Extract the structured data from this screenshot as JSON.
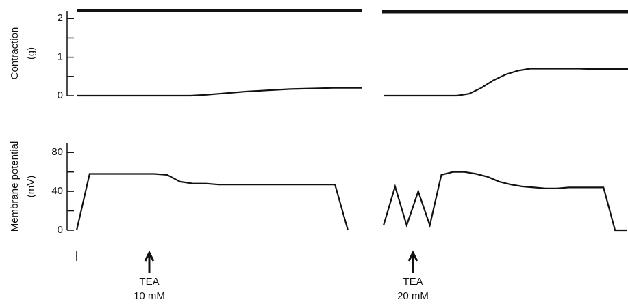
{
  "chart_data": [
    {
      "type": "line",
      "ylabel": [
        "Contraction",
        "(g)"
      ],
      "ylim": [
        0,
        2.2
      ],
      "yticks": [
        0,
        1,
        2
      ],
      "minor_yticks": [
        0.5,
        1.5
      ],
      "series": [
        {
          "color": "#111111",
          "values": [
            0,
            0,
            0,
            0,
            0,
            0,
            0,
            0,
            0,
            0.02,
            0.05,
            0.08,
            0.11,
            0.13,
            0.15,
            0.17,
            0.18,
            0.19,
            0.2,
            0.2,
            0.2
          ]
        },
        {
          "color": "#111111",
          "values": [
            0,
            0,
            0,
            0,
            0,
            0,
            0,
            0.05,
            0.2,
            0.4,
            0.55,
            0.65,
            0.7,
            0.7,
            0.7,
            0.7,
            0.7,
            0.69,
            0.69,
            0.69,
            0.69
          ]
        }
      ]
    },
    {
      "type": "line",
      "ylabel": [
        "Membrane potential",
        "(mV)"
      ],
      "ylim": [
        0,
        90
      ],
      "yticks": [
        0,
        40,
        80
      ],
      "minor_yticks": [
        20,
        60
      ],
      "series": [
        {
          "color": "#111111",
          "values": [
            0,
            58,
            58,
            58,
            58,
            58,
            58,
            57,
            50,
            48,
            48,
            47,
            47,
            47,
            47,
            47,
            47,
            47,
            47,
            47,
            47,
            0
          ]
        },
        {
          "color": "#111111",
          "values": [
            5,
            45,
            5,
            40,
            5,
            57,
            60,
            60,
            58,
            55,
            50,
            47,
            45,
            44,
            43,
            43,
            44,
            44,
            44,
            44,
            0,
            0
          ]
        }
      ],
      "annotations": [
        {
          "text": "TEA",
          "sub": "10 mM"
        },
        {
          "text": "TEA",
          "sub": "20 mM"
        }
      ]
    }
  ]
}
